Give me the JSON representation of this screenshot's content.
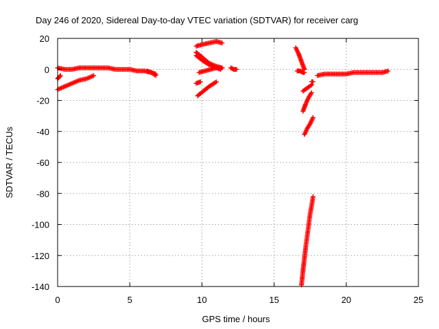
{
  "chart_data": {
    "type": "scatter",
    "title": "Day 246 of 2020, Sidereal Day-to-day VTEC variation (SDTVAR) for receiver carg",
    "xlabel": "GPS time / hours",
    "ylabel": "SDTVAR / TECUs",
    "xlim": [
      0,
      25
    ],
    "ylim": [
      -140,
      20
    ],
    "xticks": [
      "0",
      "5",
      "10",
      "15",
      "20",
      "25"
    ],
    "yticks": [
      "20",
      "0",
      "-20",
      "-40",
      "-60",
      "-80",
      "-100",
      "-120",
      "-140"
    ],
    "grid": true,
    "marker": "plus",
    "color": "#ff0000",
    "series": [
      {
        "arcs": [
          {
            "x": [
              0.0,
              0.1,
              0.2
            ],
            "y": [
              -6,
              -5,
              -4
            ]
          },
          {
            "x": [
              0.0,
              0.5,
              1.0,
              1.5,
              2.0,
              2.5,
              3.0,
              3.5,
              4.0,
              4.5,
              5.0,
              5.5,
              6.0,
              6.5,
              6.8
            ],
            "y": [
              1,
              0,
              0,
              1,
              1,
              1,
              1,
              1,
              0,
              0,
              0,
              -1,
              -1,
              -2,
              -3
            ]
          },
          {
            "x": [
              6.2,
              6.5,
              6.8
            ],
            "y": [
              -1,
              -2,
              -4
            ]
          },
          {
            "x": [
              0.0,
              0.5,
              1.0,
              1.5,
              2.0,
              2.5
            ],
            "y": [
              -13,
              -11,
              -9,
              -7,
              -6,
              -4
            ]
          },
          {
            "x": [
              9.6,
              10.0,
              10.5,
              11.0,
              11.4
            ],
            "y": [
              15,
              16,
              17,
              18,
              17
            ]
          },
          {
            "x": [
              9.6,
              10.0,
              10.5,
              11.0,
              11.3
            ],
            "y": [
              9,
              6,
              3,
              1,
              0
            ]
          },
          {
            "x": [
              9.6,
              10.0,
              10.5,
              11.0,
              11.4
            ],
            "y": [
              11,
              8,
              4,
              2,
              1
            ]
          },
          {
            "x": [
              9.8,
              10.2,
              10.6,
              11.0,
              11.4
            ],
            "y": [
              -2,
              -1,
              0,
              1,
              1
            ]
          },
          {
            "x": [
              9.6,
              9.9
            ],
            "y": [
              -9,
              -8
            ]
          },
          {
            "x": [
              9.7,
              10.1,
              10.5,
              11.0
            ],
            "y": [
              -17,
              -14,
              -11,
              -8
            ]
          },
          {
            "x": [
              12.0,
              12.2,
              12.4
            ],
            "y": [
              1,
              0,
              0
            ]
          },
          {
            "x": [
              16.5,
              16.7,
              16.9,
              17.1
            ],
            "y": [
              14,
              10,
              5,
              0
            ]
          },
          {
            "x": [
              16.6,
              16.8,
              17.0,
              17.1
            ],
            "y": [
              -1,
              -1,
              -2,
              -2
            ]
          },
          {
            "x": [
              17.0,
              17.3,
              17.6
            ],
            "y": [
              -14,
              -12,
              -10
            ]
          },
          {
            "x": [
              17.0,
              17.2,
              17.4,
              17.6
            ],
            "y": [
              -27,
              -22,
              -18,
              -15
            ]
          },
          {
            "x": [
              17.1,
              17.3,
              17.5,
              17.7
            ],
            "y": [
              -42,
              -38,
              -35,
              -31
            ]
          },
          {
            "x": [
              17.6,
              17.7
            ],
            "y": [
              -8,
              -8
            ]
          },
          {
            "x": [
              18.0,
              18.5,
              19.0,
              19.5,
              20.0,
              20.5,
              21.0,
              21.5,
              22.0,
              22.5,
              22.9
            ],
            "y": [
              -4,
              -3,
              -3,
              -3,
              -3,
              -2,
              -2,
              -2,
              -2,
              -2,
              -1
            ]
          },
          {
            "x": [
              16.9,
              17.0,
              17.1,
              17.2,
              17.3,
              17.4,
              17.5,
              17.6,
              17.7
            ],
            "y": [
              -139,
              -130,
              -122,
              -114,
              -107,
              -100,
              -93,
              -88,
              -82
            ]
          }
        ]
      }
    ]
  }
}
